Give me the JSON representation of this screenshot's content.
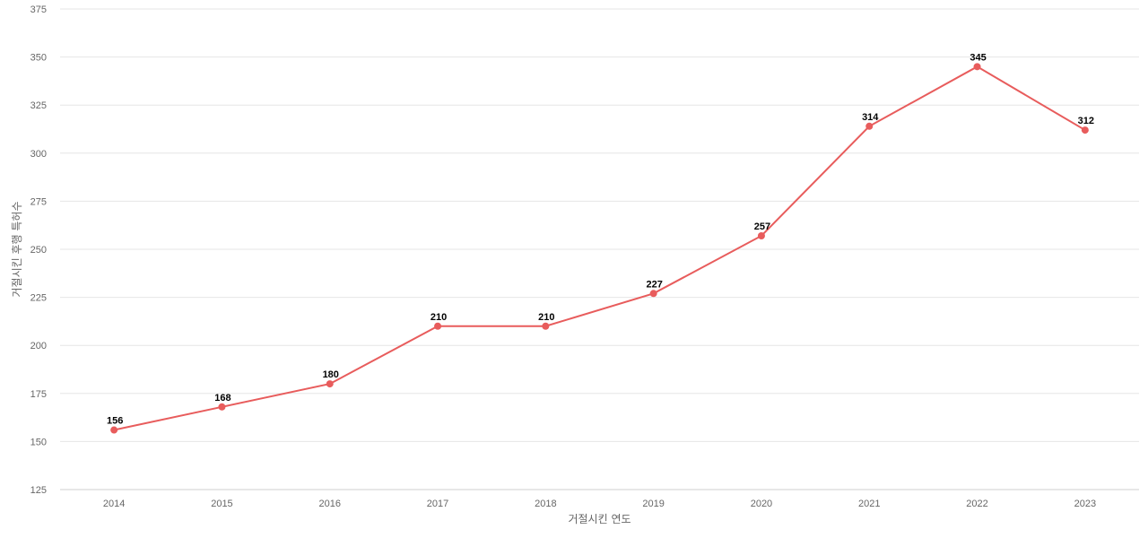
{
  "chart_data": {
    "type": "line",
    "title": "",
    "xlabel": "거절시킨 연도",
    "ylabel": "거절시킨 후행 특허수",
    "categories": [
      "2014",
      "2015",
      "2016",
      "2017",
      "2018",
      "2019",
      "2020",
      "2021",
      "2022",
      "2023"
    ],
    "series": [
      {
        "values": [
          156,
          168,
          180,
          210,
          210,
          227,
          257,
          314,
          345,
          312
        ]
      }
    ],
    "ylim": [
      125,
      375
    ],
    "yticks": [
      125,
      150,
      175,
      200,
      225,
      250,
      275,
      300,
      325,
      350,
      375
    ],
    "grid": true,
    "legend": "none",
    "colors": {
      "line": "#e85c5c",
      "marker": "#e85c5c",
      "grid": "#e6e6e6",
      "text": "#666666"
    }
  }
}
